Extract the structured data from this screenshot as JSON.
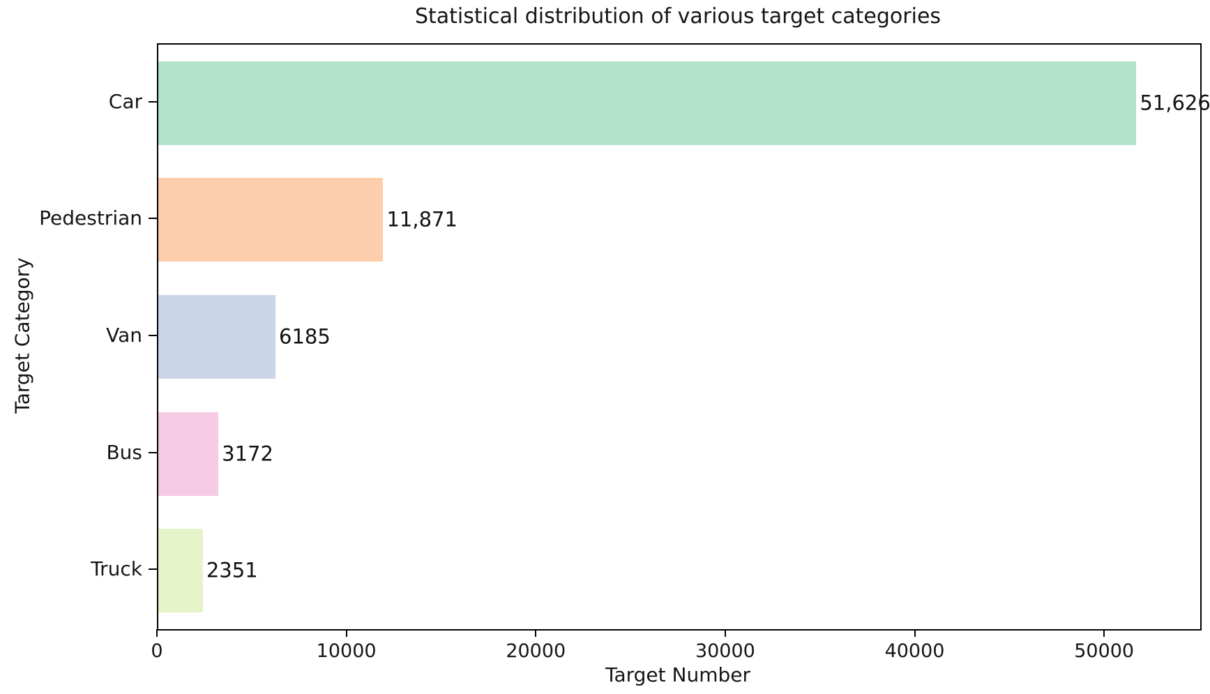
{
  "figure": {
    "background_color": "#ffffff",
    "text_color": "#151515"
  },
  "chart_data": {
    "type": "bar",
    "orientation": "horizontal",
    "title": "Statistical distribution of various target categories",
    "xlabel": "Target Number",
    "ylabel": "Target Category",
    "categories": [
      "Car",
      "Pedestrian",
      "Van",
      "Bus",
      "Truck"
    ],
    "values": [
      51626,
      11871,
      6185,
      3172,
      2351
    ],
    "value_labels": [
      "51,626",
      "11,871",
      "6185",
      "3172",
      "2351"
    ],
    "bar_colors": [
      "#b3e2cd",
      "#fdcdac",
      "#cbd5e8",
      "#f4cae4",
      "#e6f5c9"
    ],
    "xlim": [
      0,
      55000
    ],
    "xticks": [
      0,
      10000,
      20000,
      30000,
      40000,
      50000
    ],
    "xtick_labels": [
      "0",
      "10000",
      "20000",
      "30000",
      "40000",
      "50000"
    ],
    "grid": false,
    "legend": "none",
    "spine_color": "#000000"
  }
}
